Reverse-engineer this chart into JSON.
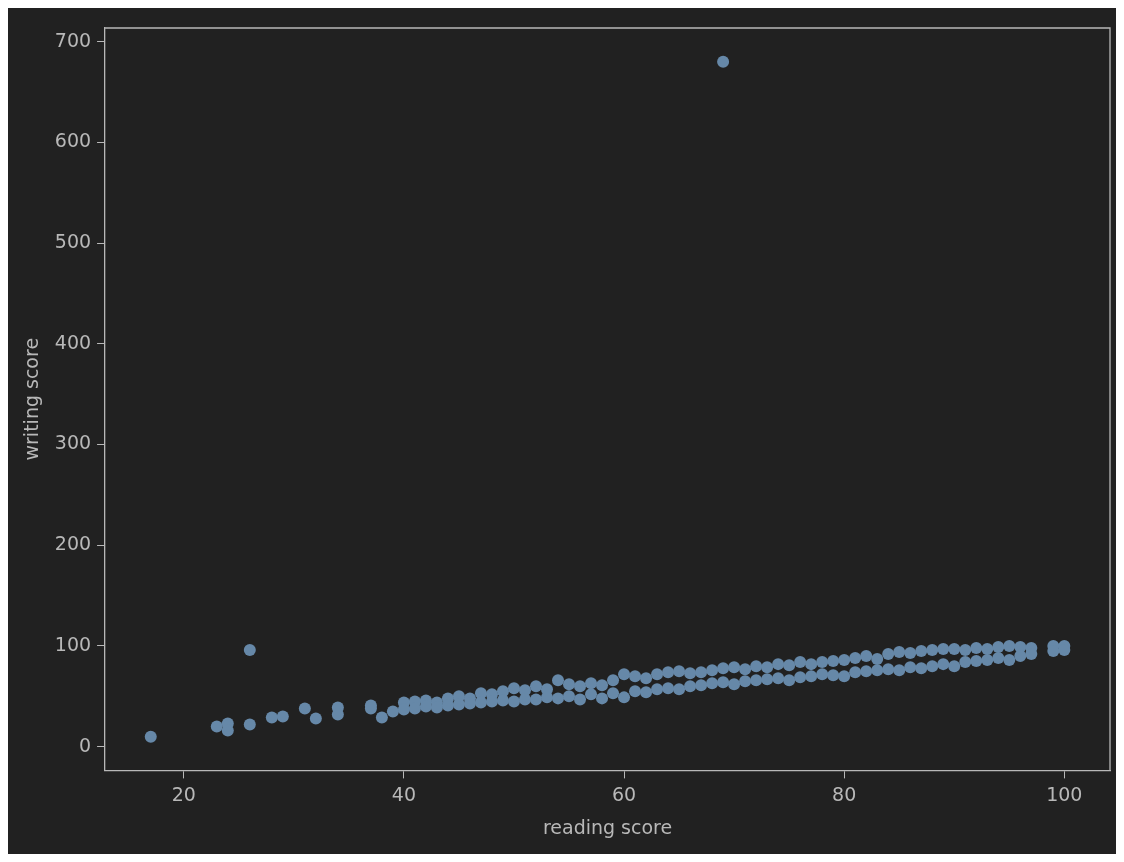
{
  "chart_data": {
    "type": "scatter",
    "xlabel": "reading score",
    "ylabel": "writing score",
    "xlim": [
      12.85,
      104.15
    ],
    "xticks": [
      20,
      40,
      60,
      80,
      100
    ],
    "ylim": [
      -23.5,
      713.5
    ],
    "yticks": [
      0,
      100,
      200,
      300,
      400,
      500,
      600,
      700
    ],
    "grid": false,
    "marker": "circle",
    "series": [
      {
        "color": "#6688a8",
        "x": [
          17,
          23,
          24,
          24,
          26,
          26,
          28,
          29,
          31,
          32,
          34,
          34,
          37,
          37,
          38,
          39,
          40,
          40,
          41,
          41,
          42,
          42,
          43,
          43,
          44,
          44,
          45,
          45,
          46,
          46,
          47,
          47,
          48,
          48,
          49,
          49,
          50,
          50,
          51,
          51,
          52,
          52,
          53,
          53,
          54,
          54,
          55,
          55,
          56,
          56,
          57,
          57,
          58,
          58,
          59,
          59,
          60,
          60,
          61,
          61,
          62,
          62,
          63,
          63,
          64,
          64,
          65,
          65,
          66,
          66,
          67,
          67,
          68,
          68,
          69,
          69,
          69,
          70,
          70,
          71,
          71,
          72,
          72,
          73,
          73,
          74,
          74,
          75,
          75,
          76,
          76,
          77,
          77,
          78,
          78,
          79,
          79,
          80,
          80,
          81,
          81,
          82,
          82,
          83,
          83,
          84,
          84,
          85,
          85,
          86,
          86,
          87,
          87,
          88,
          88,
          89,
          89,
          90,
          90,
          91,
          91,
          92,
          92,
          93,
          93,
          94,
          94,
          95,
          95,
          96,
          96,
          97,
          97,
          99,
          99,
          100,
          100
        ],
        "values": [
          10,
          20,
          23,
          16,
          96,
          22,
          29,
          30,
          38,
          28,
          39,
          32,
          41,
          38,
          29,
          35,
          44,
          37,
          45,
          38,
          46,
          40,
          44,
          39,
          48,
          41,
          50,
          42,
          48,
          43,
          53,
          44,
          52,
          45,
          55,
          46,
          58,
          45,
          56,
          47,
          60,
          47,
          57,
          49,
          66,
          48,
          62,
          50,
          60,
          47,
          63,
          52,
          61,
          48,
          66,
          53,
          72,
          49,
          70,
          55,
          68,
          54,
          72,
          57,
          74,
          58,
          75,
          57,
          73,
          60,
          74,
          61,
          76,
          63,
          78,
          64,
          680,
          79,
          62,
          77,
          65,
          80,
          66,
          79,
          67,
          82,
          68,
          81,
          66,
          84,
          69,
          82,
          70,
          84,
          72,
          85,
          71,
          86,
          70,
          88,
          74,
          90,
          75,
          87,
          76,
          92,
          77,
          94,
          76,
          93,
          79,
          95,
          78,
          96,
          80,
          97,
          82,
          97,
          80,
          96,
          84,
          98,
          85,
          97,
          86,
          99,
          88,
          100,
          86,
          99,
          90,
          98,
          92,
          100,
          95,
          100,
          96
        ]
      }
    ]
  }
}
